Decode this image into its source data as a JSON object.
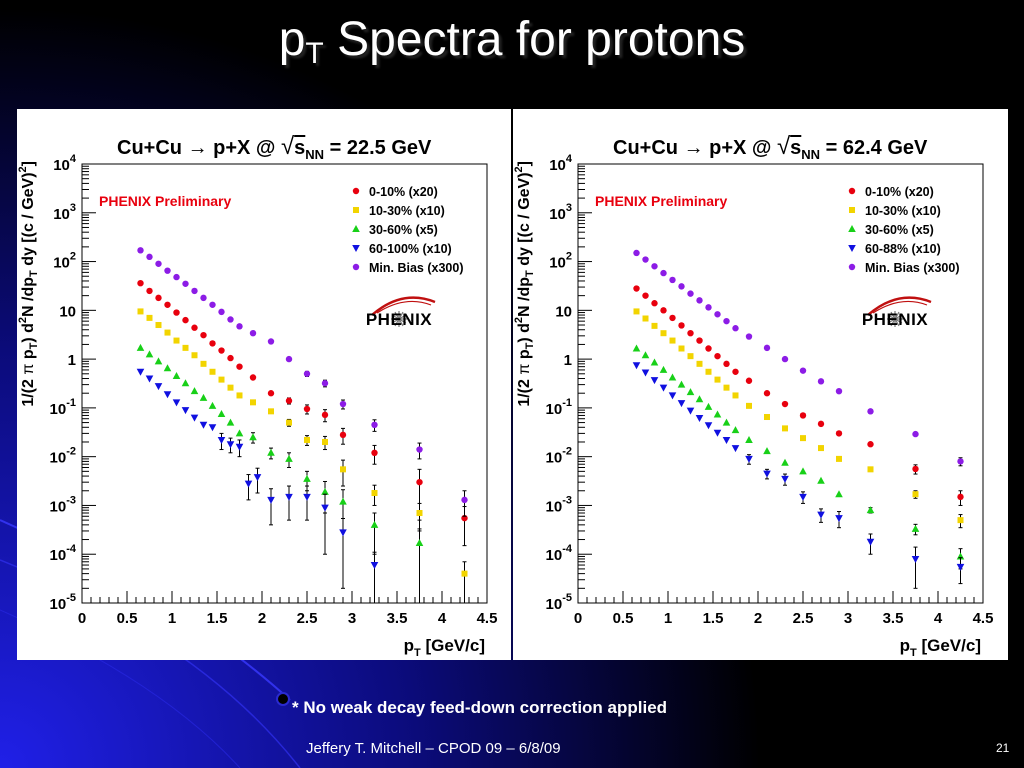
{
  "slide": {
    "title_main": "p",
    "title_sub": "T",
    "title_rest": " Spectra for protons",
    "footnote": "* No weak decay feed-down correction applied",
    "footer": "Jeffery T. Mitchell – CPOD 09 – 6/8/09",
    "page_number": "21"
  },
  "chart_data": [
    {
      "type": "scatter",
      "title": "Cu+Cu → p+X @ √sNN = 22.5 GeV",
      "title_parts": {
        "reaction": "Cu+Cu",
        "arrow": "→",
        "product": "p+X @",
        "sqrt": "√",
        "s": "s",
        "s_sub": "NN",
        "energy": "= 22.5 GeV"
      },
      "xlabel": "pT [GeV/c]",
      "xlabel_parts": {
        "main": "p",
        "sub": "T",
        "rest": " [GeV/c]"
      },
      "ylabel": "1/(2 π pT) d²N /dpT dy [(c / GeV)²]",
      "ylabel_parts": {
        "a": "1/(2 ",
        "pi": "π",
        "b": " p",
        "b_sub": "T",
        "c": ") d",
        "c_sup": "2",
        "d": "N /dp",
        "d_sub": "T",
        "e": " dy [(c / GeV)",
        "e_sup": "2",
        "f": "]"
      },
      "annotation": "PHENIX Preliminary",
      "logo": "PHENIX",
      "xlim": [
        0,
        4.5
      ],
      "ylim": [
        1e-05,
        10000
      ],
      "yscale": "log",
      "xticks": [
        0,
        0.5,
        1,
        1.5,
        2,
        2.5,
        3,
        3.5,
        4,
        4.5
      ],
      "xtick_labels": [
        "0",
        "0.5",
        "1",
        "1.5",
        "2",
        "2.5",
        "3",
        "3.5",
        "4",
        "4.5"
      ],
      "ytick_labels": [
        {
          "base": "10",
          "exp": "4"
        },
        {
          "base": "10",
          "exp": "3"
        },
        {
          "base": "10",
          "exp": "2"
        },
        {
          "base": "10",
          "exp": ""
        },
        {
          "base": "1",
          "exp": ""
        },
        {
          "base": "10",
          "exp": "-1"
        },
        {
          "base": "10",
          "exp": "-2"
        },
        {
          "base": "10",
          "exp": "-3"
        },
        {
          "base": "10",
          "exp": "-4"
        },
        {
          "base": "10",
          "exp": "-5"
        }
      ],
      "legend_position": "top-right",
      "series": [
        {
          "name": "0-10% (x20)",
          "color": "#e8000e",
          "marker": "circle",
          "x": [
            0.65,
            0.75,
            0.85,
            0.95,
            1.05,
            1.15,
            1.25,
            1.35,
            1.45,
            1.55,
            1.65,
            1.75,
            1.9,
            2.1,
            2.3,
            2.5,
            2.7,
            2.9,
            3.25,
            3.75,
            4.25
          ],
          "y": [
            36,
            25,
            18,
            13,
            9,
            6.3,
            4.4,
            3.1,
            2.1,
            1.5,
            1.05,
            0.7,
            0.42,
            0.2,
            0.14,
            0.095,
            0.072,
            0.028,
            0.012,
            0.003,
            0.00055
          ],
          "yerr": [
            0,
            0,
            0,
            0,
            0,
            0,
            0,
            0,
            0,
            0,
            0,
            0,
            0,
            0,
            0.02,
            0.02,
            0.02,
            0.01,
            0.005,
            0.0025,
            0.0004
          ]
        },
        {
          "name": "10-30% (x10)",
          "color": "#f2d400",
          "marker": "square",
          "x": [
            0.65,
            0.75,
            0.85,
            0.95,
            1.05,
            1.15,
            1.25,
            1.35,
            1.45,
            1.55,
            1.65,
            1.75,
            1.9,
            2.1,
            2.3,
            2.5,
            2.7,
            2.9,
            3.25,
            3.75,
            4.25
          ],
          "y": [
            9.5,
            7,
            5,
            3.5,
            2.4,
            1.7,
            1.2,
            0.8,
            0.55,
            0.38,
            0.26,
            0.18,
            0.13,
            0.085,
            0.05,
            0.022,
            0.02,
            0.0055,
            0.0018,
            0.0007,
            4e-05
          ],
          "yerr": [
            0,
            0,
            0,
            0,
            0,
            0,
            0,
            0,
            0,
            0,
            0,
            0,
            0,
            0,
            0.008,
            0.005,
            0.006,
            0.003,
            0.0008,
            0.0004,
            3e-05
          ]
        },
        {
          "name": "30-60% (x5)",
          "color": "#18d018",
          "marker": "triangle-up",
          "x": [
            0.65,
            0.75,
            0.85,
            0.95,
            1.05,
            1.15,
            1.25,
            1.35,
            1.45,
            1.55,
            1.65,
            1.75,
            1.9,
            2.1,
            2.3,
            2.5,
            2.7,
            2.9,
            3.25,
            3.75
          ],
          "y": [
            1.7,
            1.25,
            0.9,
            0.65,
            0.45,
            0.32,
            0.22,
            0.16,
            0.11,
            0.075,
            0.05,
            0.03,
            0.025,
            0.012,
            0.009,
            0.0035,
            0.0019,
            0.0012,
            0.0004,
            0.00017
          ],
          "yerr": [
            0,
            0,
            0,
            0,
            0,
            0,
            0,
            0,
            0,
            0,
            0,
            0,
            0.006,
            0.003,
            0.003,
            0.0015,
            0.0012,
            0.0009,
            0.0003,
            0.00016
          ]
        },
        {
          "name": "60-100% (x10)",
          "color": "#1010e0",
          "marker": "triangle-down",
          "x": [
            0.65,
            0.75,
            0.85,
            0.95,
            1.05,
            1.15,
            1.25,
            1.35,
            1.45,
            1.55,
            1.65,
            1.75,
            1.85,
            1.95,
            2.1,
            2.3,
            2.5,
            2.7,
            2.9,
            3.25
          ],
          "y": [
            0.55,
            0.4,
            0.28,
            0.19,
            0.13,
            0.09,
            0.063,
            0.045,
            0.04,
            0.022,
            0.018,
            0.016,
            0.0028,
            0.0038,
            0.0013,
            0.0015,
            0.0015,
            0.0009,
            0.00028,
            6e-05
          ],
          "yerr": [
            0,
            0,
            0,
            0,
            0,
            0,
            0,
            0,
            0,
            0.008,
            0.006,
            0.006,
            0.0015,
            0.002,
            0.0009,
            0.001,
            0.001,
            0.0008,
            0.00026,
            5e-05
          ]
        },
        {
          "name": "Min. Bias (x300)",
          "color": "#8c1ce6",
          "marker": "circle",
          "x": [
            0.65,
            0.75,
            0.85,
            0.95,
            1.05,
            1.15,
            1.25,
            1.35,
            1.45,
            1.55,
            1.65,
            1.75,
            1.9,
            2.1,
            2.3,
            2.5,
            2.7,
            2.9,
            3.25,
            3.75,
            4.25
          ],
          "y": [
            170,
            125,
            90,
            65,
            48,
            35,
            25,
            18,
            13,
            9.3,
            6.5,
            4.7,
            3.4,
            2.3,
            1.0,
            0.5,
            0.32,
            0.12,
            0.045,
            0.014,
            0.0013
          ],
          "yerr": [
            0,
            0,
            0,
            0,
            0,
            0,
            0,
            0,
            0,
            0,
            0,
            0,
            0,
            0,
            0,
            0.06,
            0.05,
            0.025,
            0.012,
            0.005,
            0.0007
          ]
        }
      ]
    },
    {
      "type": "scatter",
      "title": "Cu+Cu → p+X @ √sNN = 62.4 GeV",
      "title_parts": {
        "reaction": "Cu+Cu",
        "arrow": "→",
        "product": "p+X @",
        "sqrt": "√",
        "s": "s",
        "s_sub": "NN",
        "energy": "= 62.4 GeV"
      },
      "xlabel": "pT [GeV/c]",
      "xlabel_parts": {
        "main": "p",
        "sub": "T",
        "rest": " [GeV/c]"
      },
      "ylabel": "1/(2 π pT) d²N /dpT dy [(c / GeV)²]",
      "ylabel_parts": {
        "a": "1/(2 ",
        "pi": "π",
        "b": " p",
        "b_sub": "T",
        "c": ") d",
        "c_sup": "2",
        "d": "N /dp",
        "d_sub": "T",
        "e": " dy [(c / GeV)",
        "e_sup": "2",
        "f": "]"
      },
      "annotation": "PHENIX Preliminary",
      "logo": "PHENIX",
      "xlim": [
        0,
        4.5
      ],
      "ylim": [
        1e-05,
        10000
      ],
      "yscale": "log",
      "xticks": [
        0,
        0.5,
        1,
        1.5,
        2,
        2.5,
        3,
        3.5,
        4,
        4.5
      ],
      "xtick_labels": [
        "0",
        "0.5",
        "1",
        "1.5",
        "2",
        "2.5",
        "3",
        "3.5",
        "4",
        "4.5"
      ],
      "ytick_labels": [
        {
          "base": "10",
          "exp": "4"
        },
        {
          "base": "10",
          "exp": "3"
        },
        {
          "base": "10",
          "exp": "2"
        },
        {
          "base": "10",
          "exp": ""
        },
        {
          "base": "1",
          "exp": ""
        },
        {
          "base": "10",
          "exp": "-1"
        },
        {
          "base": "10",
          "exp": "-2"
        },
        {
          "base": "10",
          "exp": "-3"
        },
        {
          "base": "10",
          "exp": "-4"
        },
        {
          "base": "10",
          "exp": "-5"
        }
      ],
      "legend_position": "top-right",
      "series": [
        {
          "name": "0-10% (x20)",
          "color": "#e8000e",
          "marker": "circle",
          "x": [
            0.65,
            0.75,
            0.85,
            0.95,
            1.05,
            1.15,
            1.25,
            1.35,
            1.45,
            1.55,
            1.65,
            1.75,
            1.9,
            2.1,
            2.3,
            2.5,
            2.7,
            2.9,
            3.25,
            3.75,
            4.25
          ],
          "y": [
            28,
            20,
            14,
            10,
            7,
            4.9,
            3.4,
            2.4,
            1.65,
            1.15,
            0.8,
            0.55,
            0.36,
            0.2,
            0.12,
            0.07,
            0.047,
            0.03,
            0.018,
            0.0056,
            0.0015
          ],
          "yerr": [
            0,
            0,
            0,
            0,
            0,
            0,
            0,
            0,
            0,
            0,
            0,
            0,
            0,
            0,
            0,
            0,
            0,
            0,
            0,
            0.0012,
            0.0005
          ]
        },
        {
          "name": "10-30% (x10)",
          "color": "#f2d400",
          "marker": "square",
          "x": [
            0.65,
            0.75,
            0.85,
            0.95,
            1.05,
            1.15,
            1.25,
            1.35,
            1.45,
            1.55,
            1.65,
            1.75,
            1.9,
            2.1,
            2.3,
            2.5,
            2.7,
            2.9,
            3.25,
            3.75,
            4.25
          ],
          "y": [
            9.5,
            6.8,
            4.8,
            3.4,
            2.4,
            1.65,
            1.15,
            0.8,
            0.55,
            0.38,
            0.26,
            0.18,
            0.11,
            0.065,
            0.038,
            0.024,
            0.015,
            0.009,
            0.0055,
            0.0017,
            0.0005
          ],
          "yerr": [
            0,
            0,
            0,
            0,
            0,
            0,
            0,
            0,
            0,
            0,
            0,
            0,
            0,
            0,
            0,
            0,
            0,
            0,
            0,
            0.0003,
            0.00015
          ]
        },
        {
          "name": "30-60% (x5)",
          "color": "#18d018",
          "marker": "triangle-up",
          "x": [
            0.65,
            0.75,
            0.85,
            0.95,
            1.05,
            1.15,
            1.25,
            1.35,
            1.45,
            1.55,
            1.65,
            1.75,
            1.9,
            2.1,
            2.3,
            2.5,
            2.7,
            2.9,
            3.25,
            3.75,
            4.25
          ],
          "y": [
            1.65,
            1.2,
            0.85,
            0.6,
            0.42,
            0.3,
            0.21,
            0.15,
            0.105,
            0.073,
            0.05,
            0.035,
            0.022,
            0.013,
            0.0075,
            0.005,
            0.0032,
            0.0017,
            0.0008,
            0.00033,
            9e-05
          ],
          "yerr": [
            0,
            0,
            0,
            0,
            0,
            0,
            0,
            0,
            0,
            0,
            0,
            0,
            0,
            0,
            0,
            0,
            0,
            0,
            0.0001,
            8e-05,
            4e-05
          ]
        },
        {
          "name": "60-88% (x10)",
          "color": "#1010e0",
          "marker": "triangle-down",
          "x": [
            0.65,
            0.75,
            0.85,
            0.95,
            1.05,
            1.15,
            1.25,
            1.35,
            1.45,
            1.55,
            1.65,
            1.75,
            1.9,
            2.1,
            2.3,
            2.5,
            2.7,
            2.9,
            3.25,
            3.75,
            4.25
          ],
          "y": [
            0.75,
            0.53,
            0.37,
            0.26,
            0.18,
            0.125,
            0.088,
            0.062,
            0.044,
            0.031,
            0.022,
            0.015,
            0.009,
            0.0045,
            0.0035,
            0.0015,
            0.00065,
            0.00055,
            0.00018,
            8e-05,
            5.5e-05
          ],
          "yerr": [
            0,
            0,
            0,
            0,
            0,
            0,
            0,
            0,
            0,
            0,
            0,
            0,
            0.002,
            0.001,
            0.0009,
            0.0004,
            0.0002,
            0.0002,
            8e-05,
            6e-05,
            3e-05
          ]
        },
        {
          "name": "Min. Bias (x300)",
          "color": "#8c1ce6",
          "marker": "circle",
          "x": [
            0.65,
            0.75,
            0.85,
            0.95,
            1.05,
            1.15,
            1.25,
            1.35,
            1.45,
            1.55,
            1.65,
            1.75,
            1.9,
            2.1,
            2.3,
            2.5,
            2.7,
            2.9,
            3.25,
            3.75,
            4.25
          ],
          "y": [
            150,
            110,
            80,
            58,
            42,
            31,
            22,
            16,
            11.5,
            8.3,
            6,
            4.3,
            2.9,
            1.7,
            1.0,
            0.58,
            0.35,
            0.22,
            0.085,
            0.029,
            0.008
          ],
          "yerr": [
            0,
            0,
            0,
            0,
            0,
            0,
            0,
            0,
            0,
            0,
            0,
            0,
            0,
            0,
            0,
            0,
            0,
            0,
            0,
            0,
            0.0015
          ]
        }
      ]
    }
  ],
  "theme": {
    "background": "#000000",
    "blue_gradient": "#1c1ce0",
    "text": "#ffffff",
    "annotation_color": "#e8000e"
  }
}
